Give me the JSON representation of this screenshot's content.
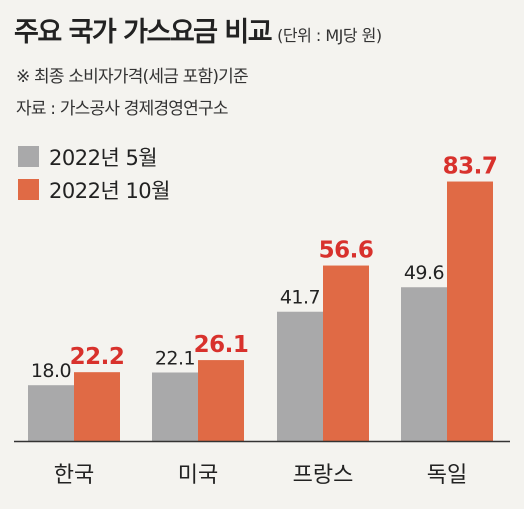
{
  "header": {
    "title": "주요 국가 가스요금 비교",
    "unit": "(단위 : MJ당 원)",
    "note": "※ 최종 소비자가격(세금 포함)기준",
    "source": "자료 : 가스공사 경제경영연구소"
  },
  "colors": {
    "may": "#a9a9aa",
    "oct": "#e06a45",
    "oct_label": "#d8312c",
    "may_label": "#222222",
    "background": "#f4f3ef"
  },
  "chart_data": {
    "type": "bar",
    "categories": [
      "한국",
      "미국",
      "프랑스",
      "독일"
    ],
    "series": [
      {
        "name": "2022년 5월",
        "values": [
          18.0,
          22.1,
          41.7,
          49.6
        ]
      },
      {
        "name": "2022년 10월",
        "values": [
          22.2,
          26.1,
          56.6,
          83.7
        ]
      }
    ],
    "title": "주요 국가 가스요금 비교",
    "ylabel": "",
    "xlabel": "",
    "ylim": [
      0,
      90
    ],
    "grid": false,
    "legend": "top-left"
  }
}
